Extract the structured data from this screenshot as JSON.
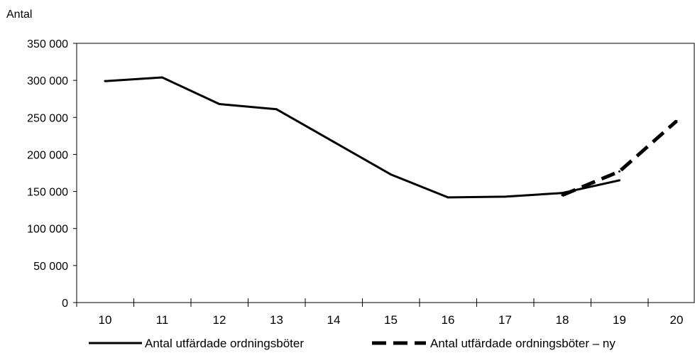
{
  "chart_data": {
    "type": "line",
    "title": "",
    "ylabel": "Antal",
    "xlabel": "",
    "categories": [
      "10",
      "11",
      "12",
      "13",
      "14",
      "15",
      "16",
      "17",
      "18",
      "19",
      "20"
    ],
    "ylim": [
      0,
      350000
    ],
    "yticks": [
      0,
      50000,
      100000,
      150000,
      200000,
      250000,
      300000,
      350000
    ],
    "ytick_labels": [
      "0",
      "50 000",
      "100 000",
      "150 000",
      "200 000",
      "250 000",
      "300 000",
      "350 000"
    ],
    "grid": false,
    "legend_position": "bottom",
    "series": [
      {
        "name": "Antal utfärdade ordningsböter",
        "style": "solid",
        "color": "#000000",
        "points": [
          {
            "x": "10",
            "y": 299000
          },
          {
            "x": "11",
            "y": 304000
          },
          {
            "x": "12",
            "y": 268000
          },
          {
            "x": "13",
            "y": 261000
          },
          {
            "x": "14",
            "y": 217000
          },
          {
            "x": "15",
            "y": 173000
          },
          {
            "x": "16",
            "y": 142000
          },
          {
            "x": "17",
            "y": 143000
          },
          {
            "x": "18",
            "y": 148000
          },
          {
            "x": "19",
            "y": 165000
          }
        ]
      },
      {
        "name": "Antal utfärdade ordningsböter  – ny",
        "style": "dashed",
        "color": "#000000",
        "points": [
          {
            "x": "18",
            "y": 145000
          },
          {
            "x": "19",
            "y": 177000
          },
          {
            "x": "20",
            "y": 245000
          }
        ]
      }
    ]
  }
}
